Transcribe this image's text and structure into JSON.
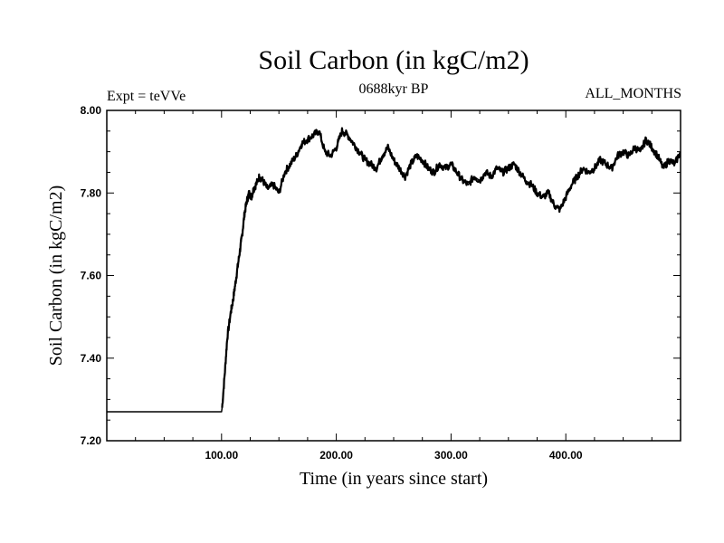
{
  "header": {
    "title": "Soil Carbon (in kgC/m2)",
    "subtitle": "0688kyr BP",
    "expt": "Expt = teVVe",
    "months": "ALL_MONTHS"
  },
  "chart_data": {
    "type": "line",
    "title": "Soil Carbon (in kgC/m2)",
    "subtitle": "0688kyr BP",
    "xlabel": "Time (in years since start)",
    "ylabel": "Soil Carbon (in kgC/m2)",
    "xlim": [
      0,
      500
    ],
    "ylim": [
      7.2,
      8.0
    ],
    "xticks": [
      100,
      200,
      300,
      400
    ],
    "xtick_labels": [
      "100.00",
      "200.00",
      "300.00",
      "400.00"
    ],
    "yticks": [
      7.2,
      7.4,
      7.6,
      7.8,
      8.0
    ],
    "ytick_labels": [
      "7.20",
      "7.40",
      "7.60",
      "7.80",
      "8.00"
    ],
    "grid": false,
    "series": [
      {
        "color": "#000000",
        "x": [
          0,
          100,
          100.5,
          103,
          105,
          108,
          110,
          112,
          114,
          116,
          118,
          120,
          122,
          124,
          126,
          128,
          130,
          133,
          136,
          140,
          145,
          150,
          155,
          160,
          165,
          170,
          175,
          180,
          185,
          190,
          195,
          200,
          205,
          210,
          215,
          220,
          225,
          230,
          235,
          240,
          245,
          250,
          255,
          260,
          265,
          270,
          275,
          280,
          285,
          290,
          295,
          300,
          305,
          310,
          315,
          320,
          325,
          330,
          335,
          340,
          345,
          350,
          355,
          360,
          365,
          370,
          375,
          380,
          385,
          390,
          395,
          400,
          405,
          410,
          415,
          420,
          425,
          430,
          435,
          440,
          445,
          450,
          455,
          460,
          465,
          470,
          475,
          480,
          485,
          490,
          495,
          500
        ],
        "y": [
          7.27,
          7.27,
          7.28,
          7.37,
          7.45,
          7.51,
          7.54,
          7.58,
          7.62,
          7.66,
          7.7,
          7.75,
          7.78,
          7.8,
          7.79,
          7.81,
          7.82,
          7.84,
          7.83,
          7.81,
          7.82,
          7.8,
          7.85,
          7.87,
          7.89,
          7.92,
          7.93,
          7.94,
          7.95,
          7.9,
          7.89,
          7.91,
          7.95,
          7.94,
          7.92,
          7.9,
          7.88,
          7.87,
          7.86,
          7.89,
          7.91,
          7.88,
          7.86,
          7.84,
          7.87,
          7.89,
          7.88,
          7.86,
          7.85,
          7.87,
          7.86,
          7.87,
          7.85,
          7.83,
          7.82,
          7.84,
          7.83,
          7.85,
          7.84,
          7.86,
          7.85,
          7.86,
          7.87,
          7.85,
          7.83,
          7.82,
          7.8,
          7.79,
          7.8,
          7.77,
          7.76,
          7.79,
          7.82,
          7.84,
          7.86,
          7.85,
          7.86,
          7.88,
          7.87,
          7.86,
          7.89,
          7.9,
          7.89,
          7.91,
          7.9,
          7.93,
          7.91,
          7.89,
          7.86,
          7.88,
          7.87,
          7.9
        ]
      }
    ]
  }
}
